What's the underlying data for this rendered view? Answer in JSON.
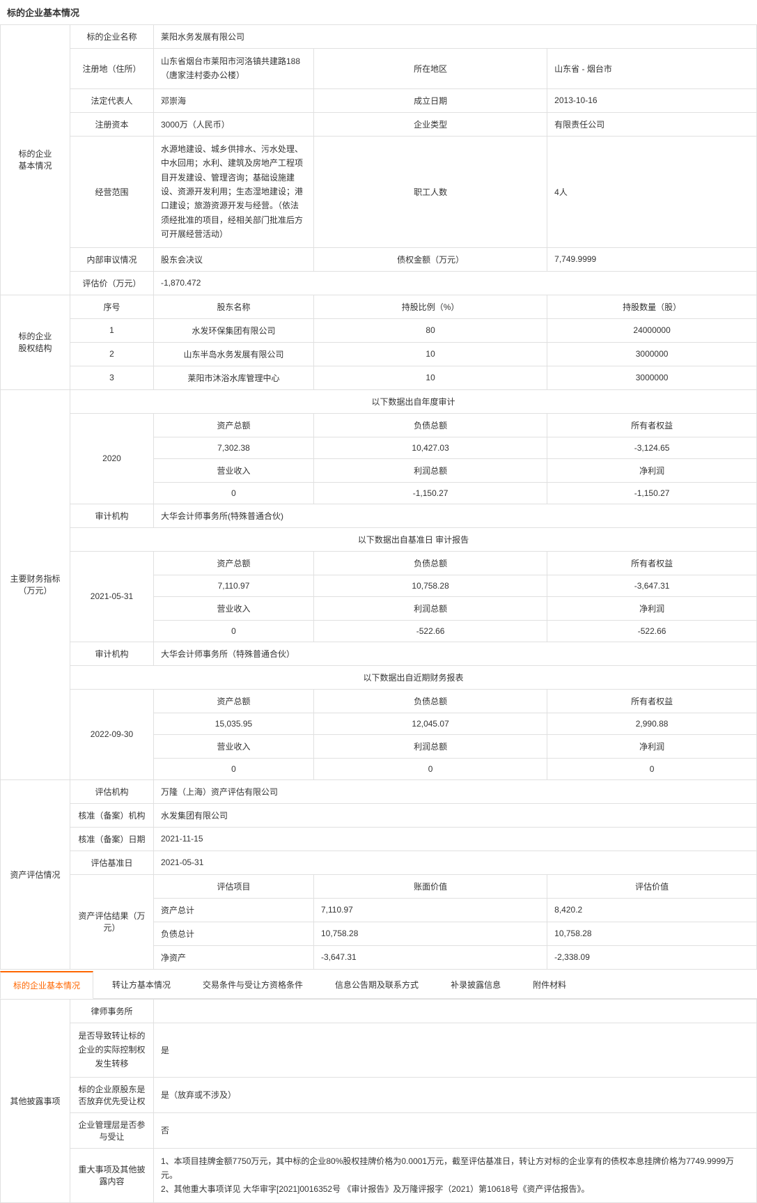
{
  "page_title": "标的企业基本情况",
  "sections": {
    "basic": {
      "label": "标的企业\n基本情况"
    },
    "equity": {
      "label": "标的企业\n股权结构"
    },
    "finance": {
      "label": "主要财务指标\n（万元）"
    },
    "valuation": {
      "label": "资产评估情况"
    },
    "other": {
      "label": "其他披露事项"
    }
  },
  "basic": {
    "name_label": "标的企业名称",
    "name_value": "莱阳水务发展有限公司",
    "addr_label": "注册地（住所）",
    "addr_value": "山东省烟台市莱阳市河洛镇共建路188（唐家洼村委办公楼）",
    "region_label": "所在地区",
    "region_value": "山东省 - 烟台市",
    "legal_label": "法定代表人",
    "legal_value": "邓崇海",
    "estab_label": "成立日期",
    "estab_value": "2013-10-16",
    "capital_label": "注册资本",
    "capital_value": "3000万（人民币）",
    "type_label": "企业类型",
    "type_value": "有限责任公司",
    "scope_label": "经营范围",
    "scope_value": "水源地建设、城乡供排水、污水处理、中水回用；水利、建筑及房地产工程项目开发建设、管理咨询；基础设施建设、资源开发利用；生态湿地建设；港口建设；旅游资源开发与经营。（依法须经批准的项目，经相关部门批准后方可开展经营活动）",
    "staff_label": "职工人数",
    "staff_value": "4人",
    "review_label": "内部审议情况",
    "review_value": "股东会决议",
    "debt_label": "债权金额（万元）",
    "debt_value": "7,749.9999",
    "eval_label": "评估价（万元）",
    "eval_value": "-1,870.472"
  },
  "equity": {
    "h_no": "序号",
    "h_name": "股东名称",
    "h_pct": "持股比例（%）",
    "h_qty": "持股数量（股）",
    "rows": [
      {
        "no": "1",
        "name": "水发环保集团有限公司",
        "pct": "80",
        "qty": "24000000"
      },
      {
        "no": "2",
        "name": "山东半岛水务发展有限公司",
        "pct": "10",
        "qty": "3000000"
      },
      {
        "no": "3",
        "name": "莱阳市沐浴水库管理中心",
        "pct": "10",
        "qty": "3000000"
      }
    ]
  },
  "fin": {
    "src_annual": "以下数据出自年度审计",
    "src_base": "以下数据出自基准日 审计报告",
    "src_recent": "以下数据出自近期财务报表",
    "h_assets": "资产总额",
    "h_liab": "负债总额",
    "h_equity": "所有者权益",
    "h_rev": "营业收入",
    "h_profit": "利润总额",
    "h_net": "净利润",
    "audit_label": "审计机构",
    "p1": {
      "period": "2020",
      "assets": "7,302.38",
      "liab": "10,427.03",
      "equity": "-3,124.65",
      "rev": "0",
      "profit": "-1,150.27",
      "net": "-1,150.27",
      "auditor": "大华会计师事务所(特殊普通合伙)"
    },
    "p2": {
      "period": "2021-05-31",
      "assets": "7,110.97",
      "liab": "10,758.28",
      "equity": "-3,647.31",
      "rev": "0",
      "profit": "-522.66",
      "net": "-522.66",
      "auditor": "大华会计师事务所（特殊普通合伙）"
    },
    "p3": {
      "period": "2022-09-30",
      "assets": "15,035.95",
      "liab": "12,045.07",
      "equity": "2,990.88",
      "rev": "0",
      "profit": "0",
      "net": "0"
    }
  },
  "val": {
    "org_label": "评估机构",
    "org_value": "万隆（上海）资产评估有限公司",
    "filing_org_label": "核准（备案）机构",
    "filing_org_value": "水发集团有限公司",
    "filing_date_label": "核准（备案）日期",
    "filing_date_value": "2021-11-15",
    "base_date_label": "评估基准日",
    "base_date_value": "2021-05-31",
    "result_label": "资产评估结果（万元）",
    "h_item": "评估项目",
    "h_book": "账面价值",
    "h_eval": "评估价值",
    "r1": {
      "item": "资产总计",
      "book": "7,110.97",
      "eval": "8,420.2"
    },
    "r2": {
      "item": "负债总计",
      "book": "10,758.28",
      "eval": "10,758.28"
    },
    "r3": {
      "item": "净资产",
      "book": "-3,647.31",
      "eval": "-2,338.09"
    }
  },
  "tabs": {
    "t1": "标的企业基本情况",
    "t2": "转让方基本情况",
    "t3": "交易条件与受让方资格条件",
    "t4": "信息公告期及联系方式",
    "t5": "补录披露信息",
    "t6": "附件材料"
  },
  "other": {
    "law_label": "律师事务所",
    "law_value": "",
    "ctrl_label": "是否导致转让标的企业的实际控制权发生转移",
    "ctrl_value": "是",
    "pre_label": "标的企业原股东是否放弃优先受让权",
    "pre_value": "是（放弃或不涉及）",
    "mgmt_label": "企业管理层是否参与受让",
    "mgmt_value": "否",
    "major_label": "重大事项及其他披露内容",
    "major_value": "1、本项目挂牌金额7750万元，其中标的企业80%股权挂牌价格为0.0001万元，截至评估基准日，转让方对标的企业享有的债权本息挂牌价格为7749.9999万元。\n2、其他重大事项详见 大华审字[2021]0016352号 《审计报告》及万隆评报字（2021）第10618号《资产评估报告》。"
  }
}
